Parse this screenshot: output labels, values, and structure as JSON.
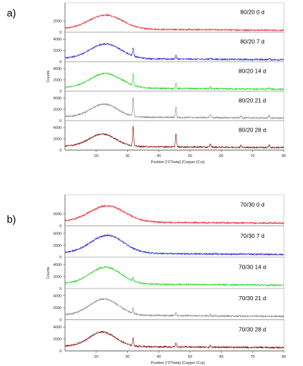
{
  "chart_data": [
    {
      "type": "line",
      "panel_label": "a)",
      "xlabel": "Position [°2Theta] (Copper (Cu))",
      "ylabel": "Counts",
      "xlim": [
        10,
        80
      ],
      "x_ticks": [
        20,
        30,
        40,
        50,
        60,
        70,
        80
      ],
      "subplot_ylim": [
        0,
        5000
      ],
      "grid": false,
      "series": [
        {
          "name": "80/20 0 d",
          "color": "#e8323c",
          "y_ticks": [
            2000
          ],
          "profile": {
            "base": 600,
            "hump_amp": 2500,
            "hump_center": 23,
            "hump_width": 7.5,
            "peaks": []
          }
        },
        {
          "name": "80/20 7 d",
          "color": "#2f2fd8",
          "y_ticks": [
            2000,
            4000
          ],
          "profile": {
            "base": 600,
            "hump_amp": 2600,
            "hump_center": 23,
            "hump_width": 7,
            "peaks": [
              {
                "x": 31.8,
                "h": 1500
              },
              {
                "x": 45.5,
                "h": 700
              },
              {
                "x": 56.5,
                "h": 250
              },
              {
                "x": 75.3,
                "h": 200
              }
            ]
          }
        },
        {
          "name": "80/20 14 d",
          "color": "#2fd52f",
          "y_ticks": [
            2000,
            4000
          ],
          "profile": {
            "base": 600,
            "hump_amp": 2600,
            "hump_center": 23,
            "hump_width": 7,
            "peaks": [
              {
                "x": 31.8,
                "h": 2200
              },
              {
                "x": 45.5,
                "h": 1000
              },
              {
                "x": 56.5,
                "h": 300
              },
              {
                "x": 75.3,
                "h": 250
              }
            ]
          }
        },
        {
          "name": "80/20 21 d",
          "color": "#8c8c8c",
          "y_ticks": [
            2000,
            4000
          ],
          "profile": {
            "base": 700,
            "hump_amp": 2300,
            "hump_center": 22.5,
            "hump_width": 6,
            "peaks": [
              {
                "x": 31.8,
                "h": 3300
              },
              {
                "x": 45.5,
                "h": 1800
              },
              {
                "x": 56.5,
                "h": 500
              },
              {
                "x": 66.3,
                "h": 300
              },
              {
                "x": 75.3,
                "h": 500
              }
            ]
          }
        },
        {
          "name": "80/20 28 d",
          "color": "#8b1a1a",
          "y_ticks": [
            2000,
            4000
          ],
          "profile": {
            "base": 700,
            "hump_amp": 2200,
            "hump_center": 22,
            "hump_width": 6,
            "peaks": [
              {
                "x": 31.8,
                "h": 3500
              },
              {
                "x": 45.5,
                "h": 2300
              },
              {
                "x": 56.5,
                "h": 600
              },
              {
                "x": 66.3,
                "h": 350
              },
              {
                "x": 75.3,
                "h": 500
              }
            ]
          }
        }
      ]
    },
    {
      "type": "line",
      "panel_label": "b)",
      "xlabel": "Position [°2Theta] (Copper (Cu))",
      "ylabel": "Counts",
      "xlim": [
        10,
        80
      ],
      "x_ticks": [
        20,
        30,
        40,
        50,
        60,
        70,
        80
      ],
      "subplot_ylim": [
        0,
        5000
      ],
      "grid": false,
      "series": [
        {
          "name": "70/30 0 d",
          "color": "#e8323c",
          "y_ticks": [
            2000
          ],
          "profile": {
            "base": 700,
            "hump_amp": 2700,
            "hump_center": 23.5,
            "hump_width": 8,
            "peaks": []
          }
        },
        {
          "name": "70/30 7 d",
          "color": "#2f2fd8",
          "y_ticks": [
            2000,
            4000
          ],
          "profile": {
            "base": 700,
            "hump_amp": 3000,
            "hump_center": 23.5,
            "hump_width": 7.5,
            "peaks": []
          }
        },
        {
          "name": "70/30 14 d",
          "color": "#2fd52f",
          "y_ticks": [
            2000,
            4000
          ],
          "profile": {
            "base": 800,
            "hump_amp": 2800,
            "hump_center": 23,
            "hump_width": 7,
            "peaks": [
              {
                "x": 31.8,
                "h": 500
              }
            ]
          }
        },
        {
          "name": "70/30 21 d",
          "color": "#8c8c8c",
          "y_ticks": [
            2000,
            4000
          ],
          "profile": {
            "base": 800,
            "hump_amp": 2700,
            "hump_center": 22.5,
            "hump_width": 6.5,
            "peaks": [
              {
                "x": 31.8,
                "h": 900
              },
              {
                "x": 45.5,
                "h": 450
              },
              {
                "x": 56.5,
                "h": 200
              }
            ]
          }
        },
        {
          "name": "70/30 28 d",
          "color": "#8b1a1a",
          "y_ticks": [
            2000,
            4000
          ],
          "profile": {
            "base": 800,
            "hump_amp": 2400,
            "hump_center": 22,
            "hump_width": 6,
            "peaks": [
              {
                "x": 31.8,
                "h": 1400
              },
              {
                "x": 45.5,
                "h": 600
              },
              {
                "x": 56.5,
                "h": 250
              }
            ]
          }
        }
      ]
    }
  ]
}
